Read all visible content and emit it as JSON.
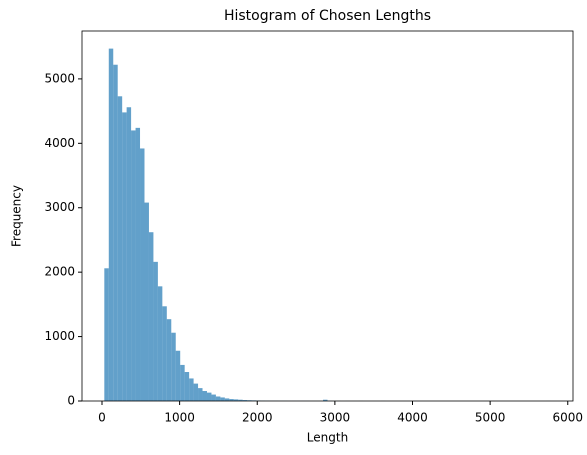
{
  "chart_data": {
    "type": "histogram",
    "title": "Histogram of Chosen Lengths",
    "x_label": "Length",
    "y_label": "Frequency",
    "color": "#1f77b4",
    "alpha": 0.7,
    "bins": [
      30,
      87.5,
      145,
      202.5,
      260,
      317.5,
      375,
      432.5,
      490,
      547.5,
      605,
      662.5,
      720,
      777.5,
      835,
      892.5,
      950,
      1007.5,
      1065,
      1122.5,
      1180,
      1237.5,
      1295,
      1352.5,
      1410,
      1467.5,
      1525,
      1582.5,
      1640,
      1697.5,
      1755,
      1812.5,
      1870,
      1927.5,
      1985,
      2042.5,
      2100,
      2157.5,
      2215,
      2272.5,
      2330,
      2387.5,
      2445,
      2502.5,
      2560,
      2617.5,
      2675,
      2732.5,
      2790,
      2847.5,
      2905,
      2962.5,
      3020,
      3077.5,
      3135,
      3192.5,
      3250,
      3307.5,
      3365,
      3422.5,
      3480,
      3537.5,
      3595,
      3652.5,
      3710,
      3767.5,
      3825,
      3882.5,
      3940,
      3997.5,
      4055,
      4112.5,
      4170,
      4227.5,
      4285,
      4342.5,
      4400,
      4457.5,
      4515,
      4572.5,
      4630,
      4687.5,
      4745,
      4802.5,
      4860,
      4917.5,
      4975,
      5032.5,
      5090,
      5147.5,
      5205,
      5262.5,
      5320,
      5377.5,
      5435,
      5492.5,
      5550,
      5607.5,
      5665,
      5722.5,
      5780
    ],
    "values": [
      2060,
      5470,
      5220,
      4730,
      4480,
      4560,
      4200,
      4240,
      3920,
      3080,
      2620,
      2160,
      1780,
      1470,
      1270,
      1060,
      780,
      560,
      450,
      350,
      270,
      200,
      155,
      130,
      100,
      70,
      55,
      40,
      30,
      25,
      20,
      15,
      12,
      10,
      8,
      6,
      5,
      4,
      4,
      3,
      3,
      2,
      2,
      2,
      2,
      2,
      1,
      1,
      1,
      20,
      2,
      1,
      1,
      0,
      1,
      0,
      0,
      1,
      0,
      0,
      0,
      0,
      1,
      0,
      0,
      0,
      0,
      0,
      0,
      0,
      0,
      0,
      0,
      0,
      0,
      0,
      0,
      0,
      0,
      0,
      0,
      0,
      0,
      0,
      0,
      0,
      0,
      0,
      0,
      0,
      0,
      0,
      0,
      0,
      0,
      0,
      0,
      0,
      0,
      1
    ],
    "xlim": [
      -257.5,
      6067.5
    ],
    "ylim": [
      0,
      5743.5
    ],
    "xticks": [
      0,
      1000,
      2000,
      3000,
      4000,
      5000,
      6000
    ],
    "yticks": [
      0,
      1000,
      2000,
      3000,
      4000,
      5000
    ]
  }
}
